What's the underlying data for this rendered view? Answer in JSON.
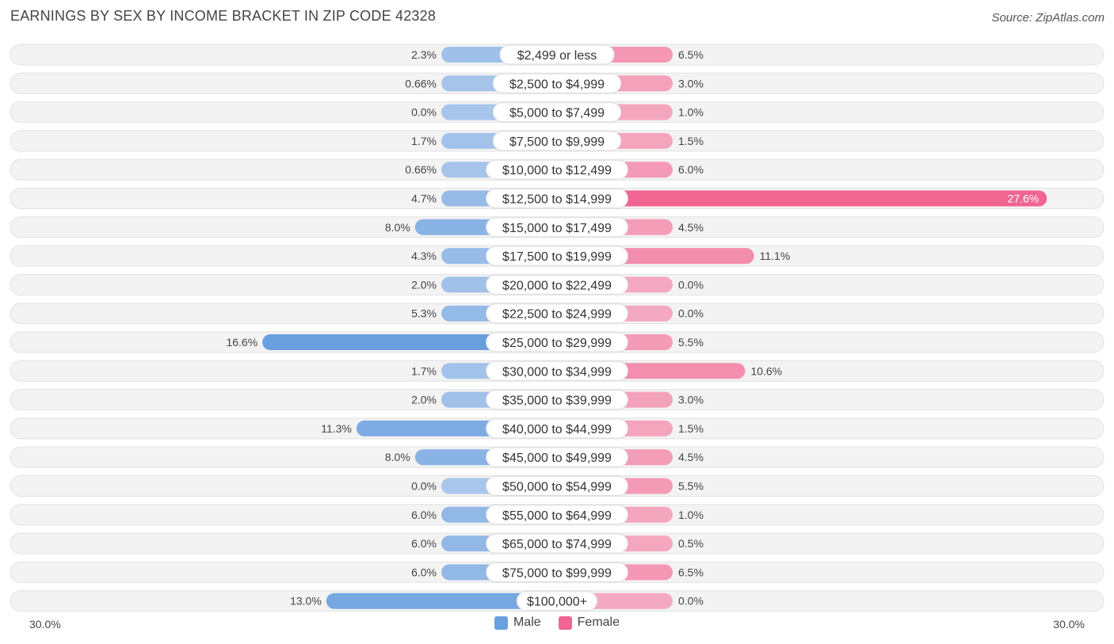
{
  "header": {
    "title": "EARNINGS BY SEX BY INCOME BRACKET IN ZIP CODE 42328",
    "source": "Source: ZipAtlas.com"
  },
  "colors": {
    "male_light": "#a8c6eb",
    "male_dark": "#6a9fde",
    "female_light": "#f5a8c1",
    "female_dark": "#f06591",
    "row_bg": "#f0f0f0"
  },
  "chart_data": {
    "type": "bar",
    "orientation": "diverging-horizontal",
    "title": "EARNINGS BY SEX BY INCOME BRACKET IN ZIP CODE 42328",
    "categories": [
      "$2,499 or less",
      "$2,500 to $4,999",
      "$5,000 to $7,499",
      "$7,500 to $9,999",
      "$10,000 to $12,499",
      "$12,500 to $14,999",
      "$15,000 to $17,499",
      "$17,500 to $19,999",
      "$20,000 to $22,499",
      "$22,500 to $24,999",
      "$25,000 to $29,999",
      "$30,000 to $34,999",
      "$35,000 to $39,999",
      "$40,000 to $44,999",
      "$45,000 to $49,999",
      "$50,000 to $54,999",
      "$55,000 to $64,999",
      "$65,000 to $74,999",
      "$75,000 to $99,999",
      "$100,000+"
    ],
    "series": [
      {
        "name": "Male",
        "values": [
          2.3,
          0.66,
          0.0,
          1.7,
          0.66,
          4.7,
          8.0,
          4.3,
          2.0,
          5.3,
          16.6,
          1.7,
          2.0,
          11.3,
          8.0,
          0.0,
          6.0,
          6.0,
          6.0,
          13.0
        ],
        "labels": [
          "2.3%",
          "0.66%",
          "0.0%",
          "1.7%",
          "0.66%",
          "4.7%",
          "8.0%",
          "4.3%",
          "2.0%",
          "5.3%",
          "16.6%",
          "1.7%",
          "2.0%",
          "11.3%",
          "8.0%",
          "0.0%",
          "6.0%",
          "6.0%",
          "6.0%",
          "13.0%"
        ]
      },
      {
        "name": "Female",
        "values": [
          6.5,
          3.0,
          1.0,
          1.5,
          6.0,
          27.6,
          4.5,
          11.1,
          0.0,
          0.0,
          5.5,
          10.6,
          3.0,
          1.5,
          4.5,
          5.5,
          1.0,
          0.5,
          6.5,
          0.0
        ],
        "labels": [
          "6.5%",
          "3.0%",
          "1.0%",
          "1.5%",
          "6.0%",
          "27.6%",
          "4.5%",
          "11.1%",
          "0.0%",
          "0.0%",
          "5.5%",
          "10.6%",
          "3.0%",
          "1.5%",
          "4.5%",
          "5.5%",
          "1.0%",
          "0.5%",
          "6.5%",
          "0.0%"
        ]
      }
    ],
    "xlim": [
      -30,
      30
    ],
    "axis_labels": {
      "left": "30.0%",
      "right": "30.0%"
    },
    "legend": [
      "Male",
      "Female"
    ],
    "legend_position": "bottom-center"
  }
}
